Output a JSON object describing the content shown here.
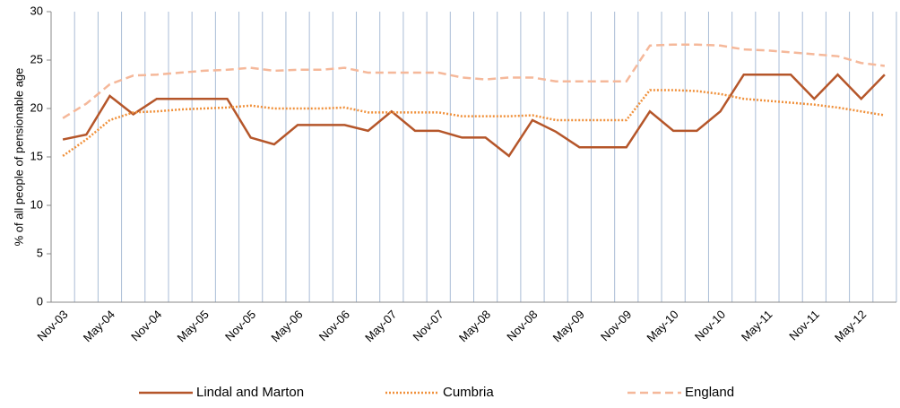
{
  "chart_data": {
    "type": "line",
    "y_label": "% of all people of pensionable age",
    "categories": [
      "Nov-03",
      null,
      "May-04",
      null,
      "Nov-04",
      null,
      "May-05",
      null,
      "Nov-05",
      null,
      "May-06",
      null,
      "Nov-06",
      null,
      "May-07",
      null,
      "Nov-07",
      null,
      "May-08",
      null,
      "Nov-08",
      null,
      "May-09",
      null,
      "Nov-09",
      null,
      "May-10",
      null,
      "Nov-10",
      null,
      "May-11",
      null,
      "Nov-11",
      null,
      "May-12",
      null
    ],
    "series": [
      {
        "name": "Lindal and Marton",
        "color": "#b5562a",
        "dash": "solid",
        "values": [
          16.8,
          17.3,
          21.3,
          19.4,
          21.0,
          21.0,
          21.0,
          21.0,
          17.0,
          16.3,
          18.3,
          18.3,
          18.3,
          17.7,
          19.7,
          17.7,
          17.7,
          17.0,
          17.0,
          15.1,
          18.8,
          17.6,
          16.0,
          16.0,
          16.0,
          19.7,
          17.7,
          17.7,
          19.7,
          23.5,
          23.5,
          23.5,
          21.0,
          23.5,
          21.0,
          23.5
        ]
      },
      {
        "name": "Cumbria",
        "color": "#f0903a",
        "dash": "dotted",
        "values": [
          15.1,
          16.8,
          18.8,
          19.6,
          19.7,
          19.9,
          20.0,
          20.1,
          20.3,
          20.0,
          20.0,
          20.0,
          20.1,
          19.6,
          19.6,
          19.6,
          19.6,
          19.2,
          19.2,
          19.2,
          19.3,
          18.8,
          18.8,
          18.8,
          18.8,
          21.9,
          21.9,
          21.8,
          21.5,
          21.0,
          20.8,
          20.6,
          20.4,
          20.1,
          19.7,
          19.3
        ]
      },
      {
        "name": "England",
        "color": "#f5b89a",
        "dash": "dashed",
        "values": [
          19.0,
          20.5,
          22.5,
          23.4,
          23.5,
          23.7,
          23.9,
          24.0,
          24.2,
          23.9,
          24.0,
          24.0,
          24.2,
          23.7,
          23.7,
          23.7,
          23.7,
          23.2,
          23.0,
          23.2,
          23.2,
          22.8,
          22.8,
          22.8,
          22.8,
          26.5,
          26.6,
          26.6,
          26.5,
          26.1,
          26.0,
          25.8,
          25.6,
          25.4,
          24.7,
          24.4
        ]
      }
    ],
    "ylim": [
      0,
      30
    ],
    "yticks": [
      0,
      5,
      10,
      15,
      20,
      25,
      30
    ],
    "grid": "vertical",
    "legend": "bottom"
  }
}
